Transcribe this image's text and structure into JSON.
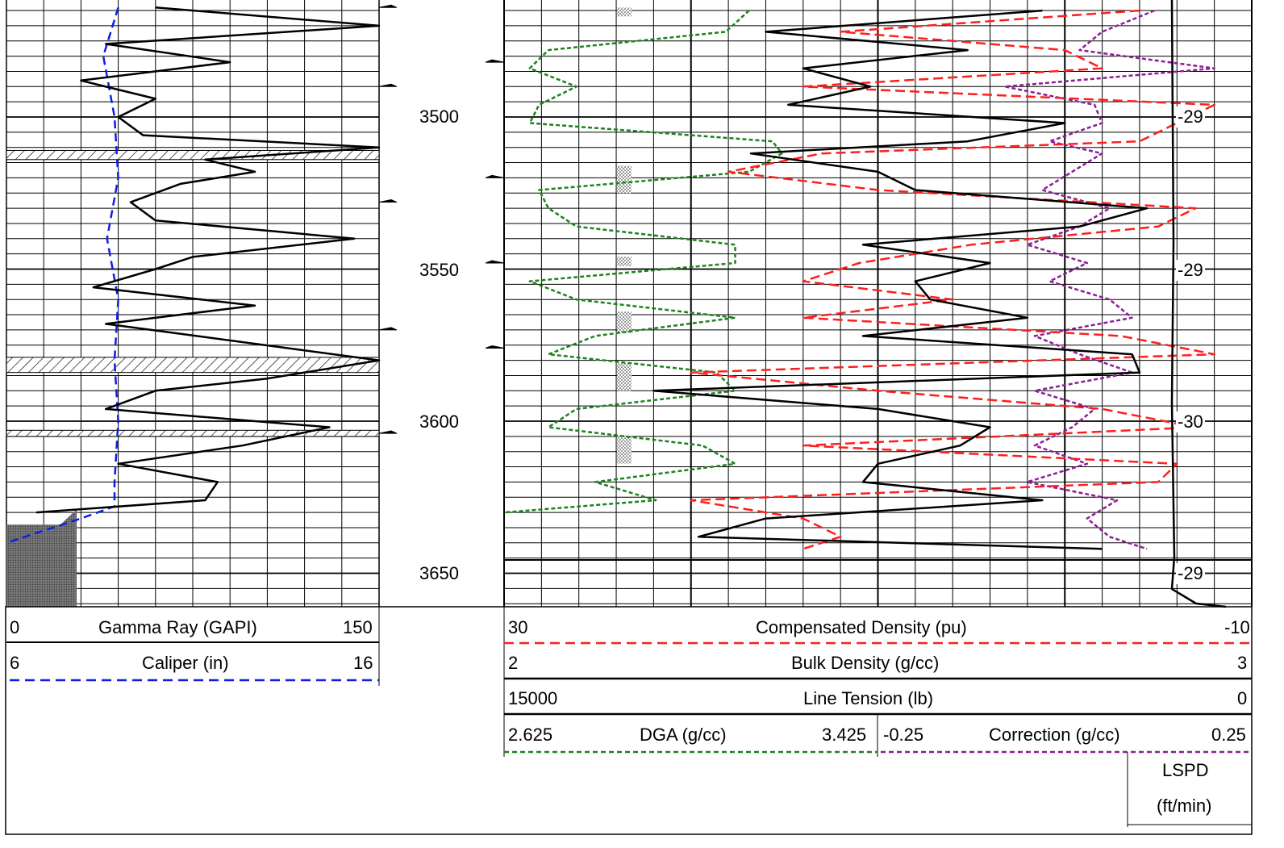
{
  "colors": {
    "gamma_ray": "#000000",
    "caliper": "#0b1ee6",
    "compensated_density": "#ff1e1e",
    "bulk_density": "#000000",
    "dga": "#1e821e",
    "correction": "#8c1e96",
    "line_tension": "#000000"
  },
  "track_labels": {
    "gamma_ray": {
      "min": "0",
      "name": "Gamma Ray (GAPI)",
      "max": "150"
    },
    "caliper": {
      "min": "6",
      "name": "Caliper (in)",
      "max": "16"
    },
    "compensated_density": {
      "min": "30",
      "name": "Compensated Density (pu)",
      "max": "-10"
    },
    "bulk_density": {
      "min": "2",
      "name": "Bulk Density (g/cc)",
      "max": "3"
    },
    "line_tension": {
      "min": "15000",
      "name": "Line Tension (lb)",
      "max": "0"
    },
    "dga": {
      "min": "2.625",
      "name": "DGA (g/cc)",
      "max": "3.425"
    },
    "correction": {
      "min": "-0.25",
      "name": "Correction (g/cc)",
      "max": "0.25"
    },
    "lspd": {
      "line1": "LSPD",
      "line2": "(ft/min)"
    }
  },
  "depth_labels": [
    "3500",
    "3550",
    "3600",
    "3650"
  ],
  "lspd_values": [
    "-29",
    "-29",
    "-30",
    "-29"
  ],
  "chart_data": {
    "type": "line",
    "depth_ticks": [
      3500,
      3550,
      3600,
      3650
    ],
    "lspd_ticks": [
      -29,
      -29,
      -30,
      -29
    ],
    "series": [
      {
        "name": "Gamma Ray (GAPI)",
        "xlim": [
          0,
          150
        ],
        "depth": [
          3464,
          3470,
          3476,
          3482,
          3488,
          3494,
          3500,
          3506,
          3510,
          3514,
          3518,
          3522,
          3528,
          3534,
          3540,
          3546,
          3550,
          3556,
          3562,
          3568,
          3574,
          3580,
          3586,
          3590,
          3596,
          3602,
          3608,
          3614,
          3620,
          3626,
          3630
        ],
        "values": [
          60,
          150,
          40,
          90,
          30,
          60,
          45,
          55,
          150,
          80,
          100,
          70,
          50,
          60,
          140,
          75,
          60,
          35,
          100,
          40,
          95,
          150,
          105,
          60,
          40,
          130,
          95,
          45,
          85,
          80,
          12
        ]
      },
      {
        "name": "Caliper (in)",
        "xlim": [
          6,
          16
        ],
        "depth": [
          3464,
          3480,
          3500,
          3520,
          3540,
          3560,
          3580,
          3600,
          3620,
          3628,
          3632,
          3640
        ],
        "values": [
          9,
          8.6,
          8.9,
          9.0,
          8.7,
          9.0,
          8.9,
          9.0,
          8.9,
          8.9,
          8.0,
          6.0
        ]
      },
      {
        "name": "Compensated Density (pu)",
        "xlim": [
          30,
          -10
        ],
        "depth": [
          3465,
          3472,
          3478,
          3484,
          3490,
          3496,
          3502,
          3508,
          3512,
          3518,
          3524,
          3530,
          3536,
          3542,
          3548,
          3554,
          3560,
          3566,
          3572,
          3578,
          3584,
          3590,
          3596,
          3602,
          3608,
          3614,
          3620,
          3626,
          3632,
          3638,
          3642
        ],
        "values": [
          -4,
          12,
          0,
          -2,
          14,
          -8,
          -6,
          -4,
          13,
          18,
          10,
          -7,
          -5,
          5,
          11,
          14,
          6,
          14,
          -3,
          -8,
          20,
          10,
          -2,
          -7,
          14,
          -6,
          -5,
          20,
          14,
          12,
          14
        ]
      },
      {
        "name": "Bulk Density (g/cc)",
        "xlim": [
          2,
          3
        ],
        "depth": [
          3465,
          3472,
          3478,
          3484,
          3490,
          3496,
          3502,
          3508,
          3512,
          3518,
          3524,
          3530,
          3536,
          3542,
          3548,
          3554,
          3560,
          3566,
          3572,
          3578,
          3584,
          3590,
          3596,
          3602,
          3608,
          3614,
          3620,
          3626,
          3632,
          3638,
          3642
        ],
        "values": [
          2.72,
          2.35,
          2.62,
          2.4,
          2.49,
          2.38,
          2.75,
          2.62,
          2.33,
          2.5,
          2.55,
          2.86,
          2.77,
          2.48,
          2.65,
          2.55,
          2.57,
          2.7,
          2.48,
          2.84,
          2.85,
          2.2,
          2.5,
          2.65,
          2.61,
          2.5,
          2.48,
          2.72,
          2.35,
          2.26,
          2.8
        ]
      },
      {
        "name": "DGA (g/cc)",
        "xlim": [
          2.625,
          3.425
        ],
        "depth": [
          3465,
          3472,
          3478,
          3484,
          3490,
          3496,
          3502,
          3508,
          3512,
          3518,
          3524,
          3530,
          3536,
          3542,
          3548,
          3554,
          3560,
          3566,
          3572,
          3578,
          3584,
          3590,
          3596,
          3602,
          3608,
          3614,
          3620,
          3626,
          3630
        ],
        "values": [
          3.15,
          3.1,
          2.72,
          2.68,
          2.78,
          2.7,
          2.68,
          3.2,
          3.22,
          3.15,
          2.7,
          2.72,
          2.78,
          3.12,
          3.12,
          2.68,
          2.78,
          3.12,
          2.82,
          2.72,
          3.08,
          3.12,
          2.78,
          2.72,
          3.05,
          3.12,
          2.82,
          2.95,
          2.625
        ]
      },
      {
        "name": "Correction (g/cc)",
        "xlim": [
          -0.25,
          0.25
        ],
        "depth": [
          3465,
          3472,
          3478,
          3484,
          3490,
          3496,
          3502,
          3508,
          3512,
          3518,
          3524,
          3530,
          3536,
          3542,
          3548,
          3554,
          3560,
          3566,
          3572,
          3578,
          3584,
          3590,
          3596,
          3602,
          3608,
          3614,
          3620,
          3626,
          3632,
          3638,
          3642
        ],
        "values": [
          0.12,
          0.05,
          0.02,
          0.2,
          -0.08,
          0.04,
          0.05,
          -0.02,
          0.05,
          0.01,
          -0.03,
          0.06,
          0.02,
          -0.05,
          0.03,
          -0.02,
          0.06,
          0.09,
          -0.04,
          0.02,
          0.09,
          -0.04,
          0.04,
          0.01,
          -0.04,
          0.03,
          -0.05,
          0.07,
          0.03,
          0.06,
          0.11
        ]
      },
      {
        "name": "Line Tension (lb)",
        "xlim": [
          15000,
          0
        ],
        "depth": [
          3465,
          3500,
          3550,
          3600,
          3644,
          3654,
          3658
        ],
        "values": [
          1800,
          2000,
          2000,
          1800,
          1900,
          1800,
          500
        ]
      }
    ]
  }
}
